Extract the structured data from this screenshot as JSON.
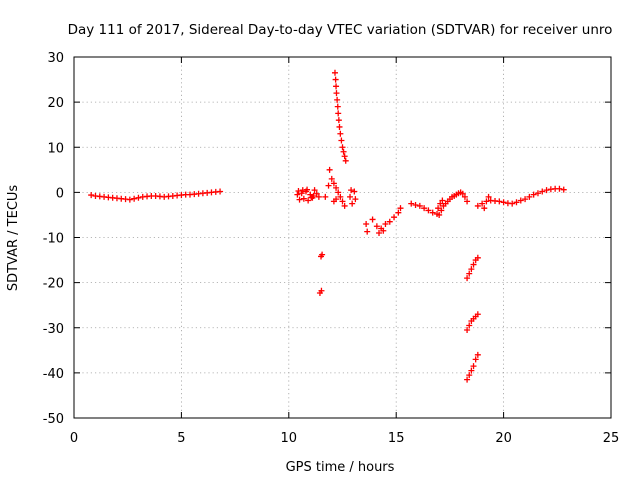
{
  "chart_data": {
    "type": "scatter",
    "title": "Day 111 of 2017, Sidereal Day-to-day VTEC variation (SDTVAR) for receiver unro",
    "xlabel": "GPS time / hours",
    "ylabel": "SDTVAR / TECUs",
    "xlim": [
      0,
      25
    ],
    "ylim": [
      -50,
      30
    ],
    "x_ticks": [
      0,
      5,
      10,
      15,
      20,
      25
    ],
    "y_ticks": [
      -50,
      -40,
      -30,
      -20,
      -10,
      0,
      10,
      20,
      30
    ],
    "x_tick_labels": [
      "0",
      "5",
      "10",
      "15",
      "20",
      "25"
    ],
    "y_tick_labels": [
      "-50",
      "-40",
      "-30",
      "-20",
      "-10",
      "0",
      "10",
      "20",
      "30"
    ],
    "grid": true,
    "marker": "+",
    "color": "#ff0000",
    "series": [
      {
        "name": "SDTVAR",
        "points": [
          [
            0.8,
            -0.6
          ],
          [
            1.0,
            -0.8
          ],
          [
            1.2,
            -0.9
          ],
          [
            1.4,
            -1.0
          ],
          [
            1.6,
            -1.1
          ],
          [
            1.8,
            -1.2
          ],
          [
            2.0,
            -1.3
          ],
          [
            2.2,
            -1.4
          ],
          [
            2.4,
            -1.5
          ],
          [
            2.6,
            -1.6
          ],
          [
            2.8,
            -1.4
          ],
          [
            3.0,
            -1.2
          ],
          [
            3.2,
            -1.0
          ],
          [
            3.4,
            -0.9
          ],
          [
            3.6,
            -0.8
          ],
          [
            3.8,
            -0.8
          ],
          [
            4.0,
            -0.9
          ],
          [
            4.2,
            -1.0
          ],
          [
            4.4,
            -0.9
          ],
          [
            4.6,
            -0.8
          ],
          [
            4.8,
            -0.7
          ],
          [
            5.0,
            -0.6
          ],
          [
            5.2,
            -0.5
          ],
          [
            5.4,
            -0.5
          ],
          [
            5.6,
            -0.4
          ],
          [
            5.8,
            -0.3
          ],
          [
            6.0,
            -0.2
          ],
          [
            6.2,
            -0.1
          ],
          [
            6.4,
            0.0
          ],
          [
            6.6,
            0.1
          ],
          [
            6.8,
            0.2
          ],
          [
            10.4,
            -0.5
          ],
          [
            10.6,
            -0.2
          ],
          [
            10.8,
            0.2
          ],
          [
            11.0,
            -0.5
          ],
          [
            11.1,
            -1.2
          ],
          [
            11.2,
            0.5
          ],
          [
            11.3,
            -0.3
          ],
          [
            11.4,
            -1.0
          ],
          [
            10.5,
            -1.6
          ],
          [
            10.7,
            -1.4
          ],
          [
            10.9,
            -1.8
          ],
          [
            11.05,
            -1.1
          ],
          [
            10.45,
            0.3
          ],
          [
            10.65,
            0.5
          ],
          [
            10.85,
            0.6
          ],
          [
            11.15,
            -0.8
          ],
          [
            11.5,
            -14.2
          ],
          [
            11.55,
            -13.8
          ],
          [
            11.45,
            -22.3
          ],
          [
            11.52,
            -21.8
          ],
          [
            11.7,
            -1.0
          ],
          [
            11.85,
            1.5
          ],
          [
            11.9,
            5.0
          ],
          [
            12.0,
            3.0
          ],
          [
            12.1,
            2.0
          ],
          [
            12.2,
            1.0
          ],
          [
            12.3,
            0.0
          ],
          [
            12.4,
            -1.0
          ],
          [
            12.5,
            -2.0
          ],
          [
            12.6,
            -3.0
          ],
          [
            12.1,
            -2.0
          ],
          [
            12.2,
            -1.5
          ],
          [
            12.15,
            26.5
          ],
          [
            12.18,
            25.0
          ],
          [
            12.2,
            23.5
          ],
          [
            12.22,
            22.0
          ],
          [
            12.25,
            20.5
          ],
          [
            12.28,
            19.0
          ],
          [
            12.3,
            17.5
          ],
          [
            12.33,
            16.0
          ],
          [
            12.36,
            14.5
          ],
          [
            12.4,
            13.0
          ],
          [
            12.45,
            11.5
          ],
          [
            12.5,
            10.0
          ],
          [
            12.55,
            9.0
          ],
          [
            12.6,
            8.0
          ],
          [
            12.65,
            7.0
          ],
          [
            12.85,
            -1.0
          ],
          [
            12.9,
            0.5
          ],
          [
            12.95,
            -2.5
          ],
          [
            13.05,
            0.2
          ],
          [
            13.1,
            -1.5
          ],
          [
            13.6,
            -7.0
          ],
          [
            13.65,
            -8.7
          ],
          [
            13.9,
            -6.0
          ],
          [
            14.1,
            -7.5
          ],
          [
            14.3,
            -8.0
          ],
          [
            14.5,
            -7.0
          ],
          [
            14.7,
            -6.5
          ],
          [
            14.9,
            -5.5
          ],
          [
            15.1,
            -4.5
          ],
          [
            15.2,
            -3.5
          ],
          [
            14.2,
            -9.0
          ],
          [
            14.4,
            -8.5
          ],
          [
            15.7,
            -2.5
          ],
          [
            15.9,
            -2.8
          ],
          [
            16.1,
            -3.0
          ],
          [
            16.3,
            -3.5
          ],
          [
            16.5,
            -4.0
          ],
          [
            16.7,
            -4.5
          ],
          [
            16.9,
            -4.8
          ],
          [
            17.0,
            -5.0
          ],
          [
            17.1,
            -4.0
          ],
          [
            17.2,
            -3.0
          ],
          [
            17.3,
            -2.5
          ],
          [
            17.4,
            -2.0
          ],
          [
            17.5,
            -1.5
          ],
          [
            17.6,
            -1.0
          ],
          [
            17.7,
            -0.8
          ],
          [
            17.8,
            -0.5
          ],
          [
            17.9,
            -0.2
          ],
          [
            18.0,
            0.0
          ],
          [
            18.1,
            -0.3
          ],
          [
            18.2,
            -1.0
          ],
          [
            18.3,
            -2.0
          ],
          [
            16.95,
            -3.5
          ],
          [
            17.05,
            -2.5
          ],
          [
            17.15,
            -1.8
          ],
          [
            18.3,
            -19.0
          ],
          [
            18.4,
            -18.0
          ],
          [
            18.5,
            -17.0
          ],
          [
            18.6,
            -16.0
          ],
          [
            18.7,
            -15.0
          ],
          [
            18.8,
            -14.5
          ],
          [
            18.3,
            -30.5
          ],
          [
            18.4,
            -29.5
          ],
          [
            18.5,
            -28.5
          ],
          [
            18.6,
            -28.0
          ],
          [
            18.7,
            -27.5
          ],
          [
            18.8,
            -27.0
          ],
          [
            18.3,
            -41.5
          ],
          [
            18.4,
            -40.5
          ],
          [
            18.5,
            -39.5
          ],
          [
            18.6,
            -38.5
          ],
          [
            18.7,
            -37.0
          ],
          [
            18.8,
            -36.0
          ],
          [
            18.8,
            -3.0
          ],
          [
            19.0,
            -2.5
          ],
          [
            19.2,
            -2.0
          ],
          [
            19.4,
            -1.8
          ],
          [
            19.6,
            -1.9
          ],
          [
            19.8,
            -2.0
          ],
          [
            20.0,
            -2.2
          ],
          [
            20.2,
            -2.4
          ],
          [
            20.4,
            -2.5
          ],
          [
            20.6,
            -2.2
          ],
          [
            20.8,
            -1.8
          ],
          [
            21.0,
            -1.5
          ],
          [
            21.2,
            -1.0
          ],
          [
            21.4,
            -0.5
          ],
          [
            21.6,
            -0.2
          ],
          [
            21.8,
            0.2
          ],
          [
            22.0,
            0.5
          ],
          [
            22.2,
            0.7
          ],
          [
            22.4,
            0.8
          ],
          [
            22.6,
            0.8
          ],
          [
            22.8,
            0.6
          ],
          [
            19.1,
            -3.5
          ],
          [
            19.3,
            -1.0
          ]
        ]
      }
    ]
  }
}
